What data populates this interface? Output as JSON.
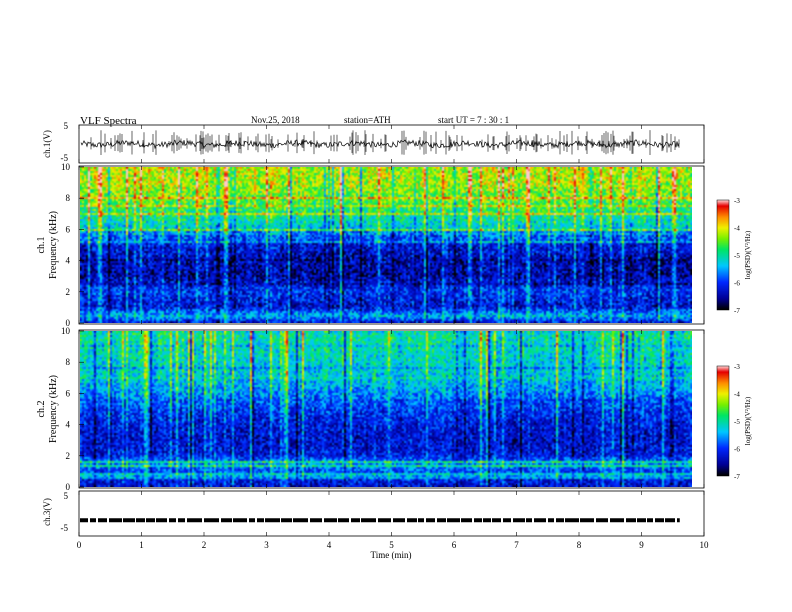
{
  "header": {
    "title": "VLF  Spectra",
    "date": "Nov.25, 2018",
    "station": "station=ATH",
    "start": "start  UT  =    7  : 30 : 1"
  },
  "chart_data": [
    {
      "type": "line",
      "panel": "ch1-waveform",
      "ylabel": "ch.1(V)",
      "yticks": [
        "5",
        "-5"
      ],
      "ylim": [
        -5,
        5
      ],
      "xlim": [
        0,
        10
      ],
      "color": "#000000",
      "data_end_min": 9.8
    },
    {
      "type": "heatmap",
      "panel": "ch1-spectrogram",
      "ylabel": "ch.1\nFrequency  (kHz)",
      "ylim": [
        0,
        10
      ],
      "yticks": [
        "0",
        "2",
        "4",
        "6",
        "8",
        "10"
      ],
      "xlim": [
        0,
        10
      ],
      "data_end_min": 9.8,
      "colorbar": {
        "label": "log(PSD)(V²/Hz)",
        "range": [
          -7,
          -3
        ],
        "ticks": [
          "-3",
          "-4",
          "-5",
          "-6",
          "-7"
        ]
      },
      "level_profile": [
        {
          "freq_khz": 0.0,
          "log_psd": -6.2
        },
        {
          "freq_khz": 0.4,
          "log_psd": -5.4
        },
        {
          "freq_khz": 1.0,
          "log_psd": -6.3
        },
        {
          "freq_khz": 2.0,
          "log_psd": -6.0
        },
        {
          "freq_khz": 3.0,
          "log_psd": -6.5
        },
        {
          "freq_khz": 4.0,
          "log_psd": -6.4
        },
        {
          "freq_khz": 5.0,
          "log_psd": -6.2
        },
        {
          "freq_khz": 6.0,
          "log_psd": -5.3
        },
        {
          "freq_khz": 7.0,
          "log_psd": -4.9
        },
        {
          "freq_khz": 8.0,
          "log_psd": -4.5
        },
        {
          "freq_khz": 9.0,
          "log_psd": -4.2
        },
        {
          "freq_khz": 10.0,
          "log_psd": -4.2
        }
      ]
    },
    {
      "type": "heatmap",
      "panel": "ch2-spectrogram",
      "ylabel": "ch.2\nFrequency  (kHz)",
      "ylim": [
        0,
        10
      ],
      "yticks": [
        "0",
        "2",
        "4",
        "6",
        "8",
        "10"
      ],
      "xlim": [
        0,
        10
      ],
      "data_end_min": 9.8,
      "colorbar": {
        "label": "log(PSD)(V²/Hz)",
        "range": [
          -7,
          -3
        ],
        "ticks": [
          "-3",
          "-4",
          "-5",
          "-6",
          "-7"
        ]
      },
      "level_profile": [
        {
          "freq_khz": 0.0,
          "log_psd": -6.3
        },
        {
          "freq_khz": 0.5,
          "log_psd": -6.1
        },
        {
          "freq_khz": 1.5,
          "log_psd": -5.6
        },
        {
          "freq_khz": 2.0,
          "log_psd": -6.2
        },
        {
          "freq_khz": 3.0,
          "log_psd": -6.3
        },
        {
          "freq_khz": 4.0,
          "log_psd": -6.2
        },
        {
          "freq_khz": 5.0,
          "log_psd": -6.0
        },
        {
          "freq_khz": 6.0,
          "log_psd": -5.6
        },
        {
          "freq_khz": 7.0,
          "log_psd": -5.3
        },
        {
          "freq_khz": 8.0,
          "log_psd": -5.2
        },
        {
          "freq_khz": 9.0,
          "log_psd": -5.1
        },
        {
          "freq_khz": 10.0,
          "log_psd": -5.0
        }
      ]
    },
    {
      "type": "line",
      "panel": "ch3-waveform",
      "ylabel": "ch.3(V)",
      "yticks": [
        "5",
        "-5"
      ],
      "ylim": [
        -5,
        5
      ],
      "xlim": [
        0,
        10
      ],
      "baseline_v": -1.5,
      "color": "#000000",
      "data_end_min": 9.8
    }
  ],
  "x_axis": {
    "label": "Time  (min)",
    "ticks": [
      "0",
      "1",
      "2",
      "3",
      "4",
      "5",
      "6",
      "7",
      "8",
      "9",
      "10"
    ]
  }
}
